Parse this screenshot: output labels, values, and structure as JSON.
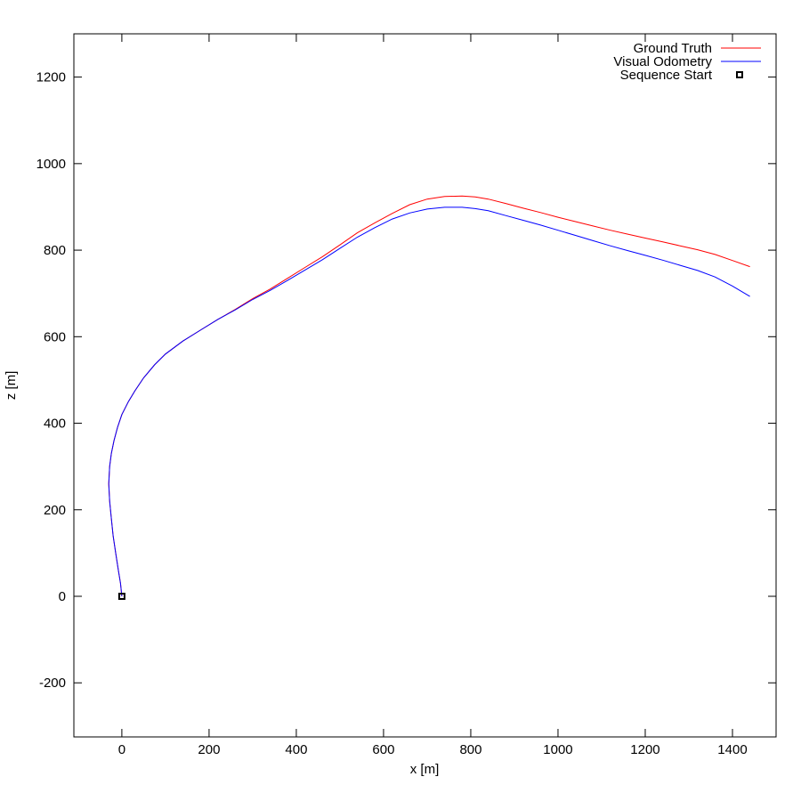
{
  "chart_data": {
    "type": "line",
    "xlabel": "x [m]",
    "ylabel": "z [m]",
    "xlim": [
      -110,
      1500
    ],
    "ylim": [
      -325,
      1300
    ],
    "xticks": [
      0,
      200,
      400,
      600,
      800,
      1000,
      1200,
      1400
    ],
    "yticks": [
      -200,
      0,
      200,
      400,
      600,
      800,
      1000,
      1200
    ],
    "xtick_labels": [
      "0",
      "200",
      "400",
      "600",
      "800",
      "1000",
      "1200",
      "1400"
    ],
    "ytick_labels": [
      "-200",
      "0",
      "200",
      "400",
      "600",
      "800",
      "1000",
      "1200"
    ],
    "grid": false,
    "legend_position": "top-right",
    "series": [
      {
        "name": "Ground Truth",
        "color": "#ff0000",
        "style": "line",
        "points": [
          [
            0,
            0
          ],
          [
            -3,
            30
          ],
          [
            -8,
            60
          ],
          [
            -14,
            100
          ],
          [
            -20,
            140
          ],
          [
            -24,
            180
          ],
          [
            -28,
            220
          ],
          [
            -30,
            260
          ],
          [
            -28,
            300
          ],
          [
            -24,
            330
          ],
          [
            -18,
            360
          ],
          [
            -10,
            390
          ],
          [
            0,
            420
          ],
          [
            15,
            450
          ],
          [
            30,
            475
          ],
          [
            50,
            505
          ],
          [
            75,
            535
          ],
          [
            100,
            560
          ],
          [
            140,
            590
          ],
          [
            180,
            615
          ],
          [
            220,
            640
          ],
          [
            260,
            663
          ],
          [
            300,
            688
          ],
          [
            340,
            710
          ],
          [
            380,
            735
          ],
          [
            420,
            760
          ],
          [
            460,
            785
          ],
          [
            500,
            812
          ],
          [
            540,
            840
          ],
          [
            580,
            863
          ],
          [
            620,
            885
          ],
          [
            660,
            905
          ],
          [
            700,
            918
          ],
          [
            740,
            924
          ],
          [
            780,
            925
          ],
          [
            810,
            923
          ],
          [
            840,
            918
          ],
          [
            880,
            908
          ],
          [
            920,
            897
          ],
          [
            960,
            887
          ],
          [
            1000,
            876
          ],
          [
            1040,
            866
          ],
          [
            1080,
            856
          ],
          [
            1120,
            846
          ],
          [
            1160,
            837
          ],
          [
            1200,
            828
          ],
          [
            1240,
            819
          ],
          [
            1280,
            810
          ],
          [
            1320,
            801
          ],
          [
            1360,
            790
          ],
          [
            1400,
            776
          ],
          [
            1440,
            762
          ]
        ]
      },
      {
        "name": "Visual Odometry",
        "color": "#0000ff",
        "style": "line",
        "points": [
          [
            0,
            0
          ],
          [
            -3,
            30
          ],
          [
            -8,
            60
          ],
          [
            -14,
            100
          ],
          [
            -20,
            140
          ],
          [
            -24,
            180
          ],
          [
            -28,
            220
          ],
          [
            -30,
            260
          ],
          [
            -28,
            300
          ],
          [
            -24,
            330
          ],
          [
            -18,
            360
          ],
          [
            -10,
            390
          ],
          [
            0,
            420
          ],
          [
            15,
            450
          ],
          [
            30,
            475
          ],
          [
            50,
            505
          ],
          [
            75,
            535
          ],
          [
            100,
            560
          ],
          [
            140,
            590
          ],
          [
            180,
            615
          ],
          [
            220,
            640
          ],
          [
            260,
            662
          ],
          [
            300,
            686
          ],
          [
            340,
            707
          ],
          [
            380,
            730
          ],
          [
            420,
            754
          ],
          [
            460,
            778
          ],
          [
            500,
            804
          ],
          [
            540,
            830
          ],
          [
            580,
            852
          ],
          [
            620,
            872
          ],
          [
            660,
            886
          ],
          [
            700,
            895
          ],
          [
            740,
            899
          ],
          [
            780,
            899
          ],
          [
            810,
            896
          ],
          [
            840,
            891
          ],
          [
            880,
            880
          ],
          [
            920,
            869
          ],
          [
            960,
            858
          ],
          [
            1000,
            846
          ],
          [
            1040,
            834
          ],
          [
            1080,
            822
          ],
          [
            1120,
            810
          ],
          [
            1160,
            799
          ],
          [
            1200,
            788
          ],
          [
            1240,
            777
          ],
          [
            1280,
            765
          ],
          [
            1320,
            753
          ],
          [
            1360,
            738
          ],
          [
            1400,
            717
          ],
          [
            1440,
            693
          ]
        ]
      },
      {
        "name": "Sequence Start",
        "color": "#000000",
        "style": "marker",
        "points": [
          [
            0,
            0
          ]
        ]
      }
    ]
  }
}
